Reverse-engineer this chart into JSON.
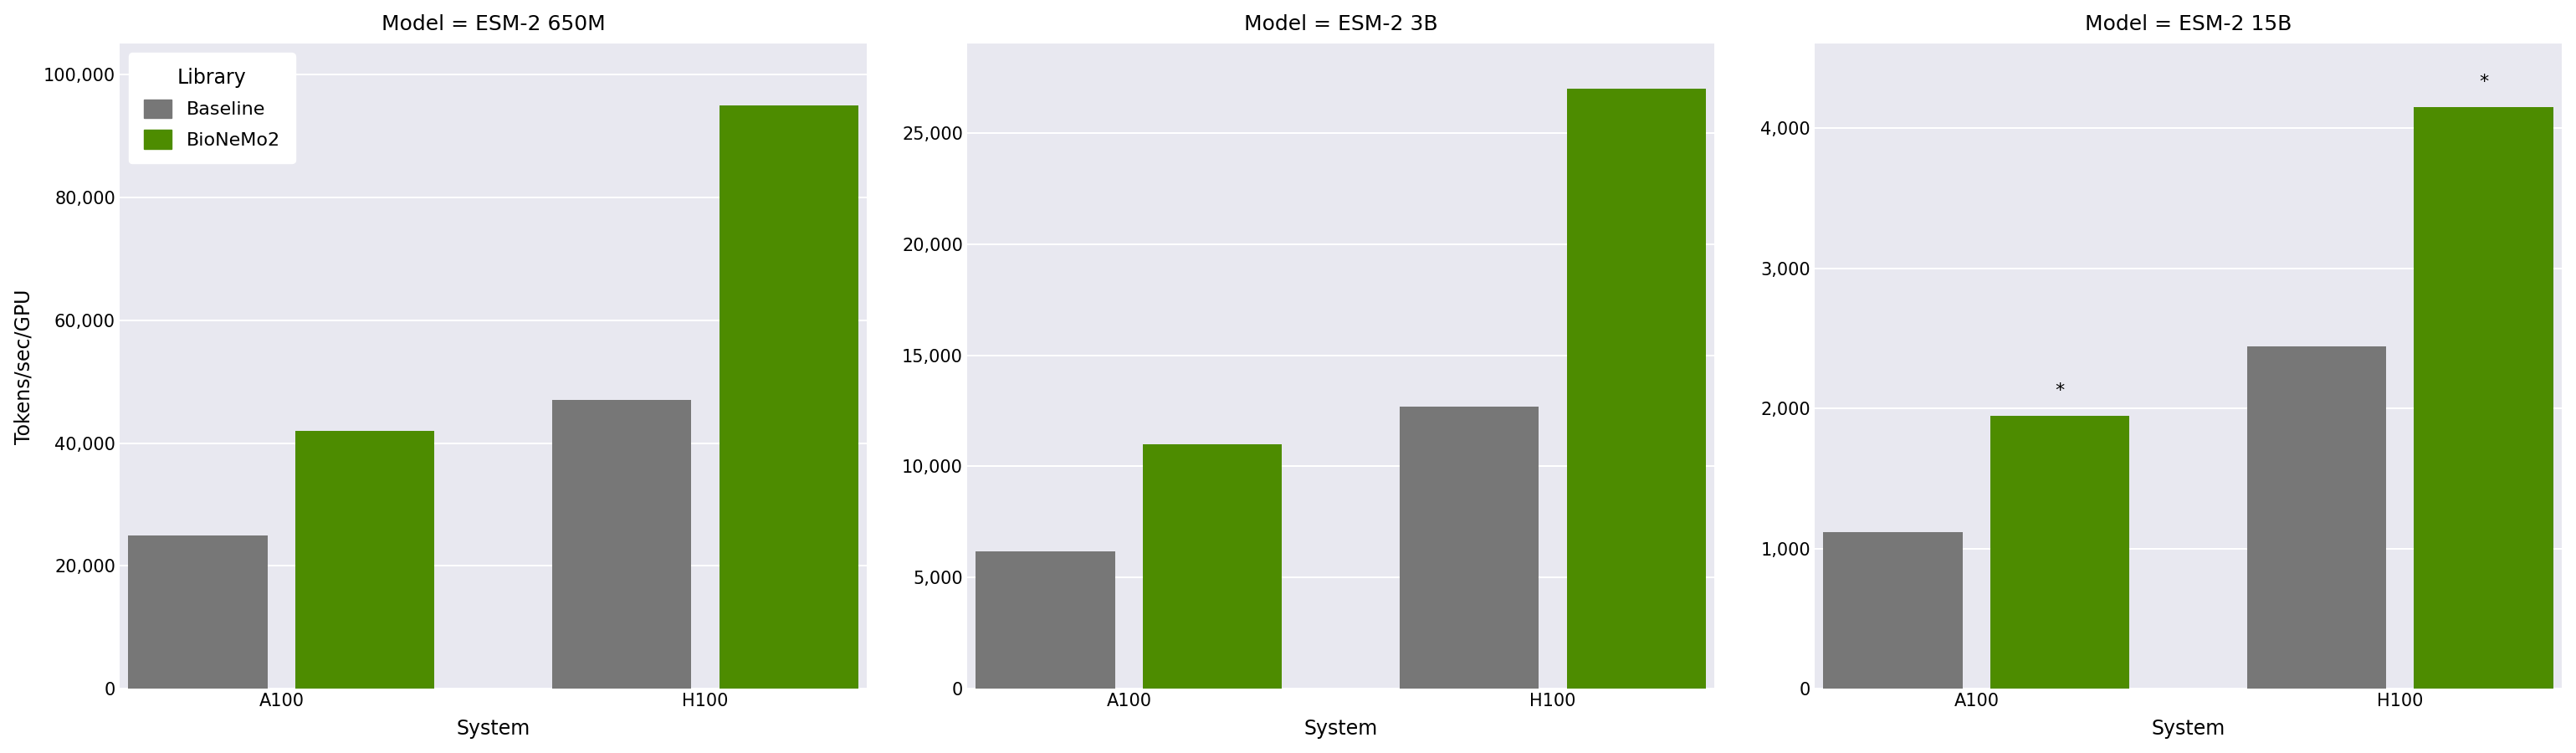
{
  "subplots": [
    {
      "title": "Model = ESM-2 650M",
      "systems": [
        "A100",
        "H100"
      ],
      "baseline": [
        25000,
        47000
      ],
      "bionemo2": [
        42000,
        95000
      ],
      "ylim": [
        0,
        105000
      ],
      "yticks": [
        0,
        20000,
        40000,
        60000,
        80000,
        100000
      ],
      "ytick_labels": [
        "0",
        "20,000",
        "40,000",
        "60,000",
        "80,000",
        "100,000"
      ],
      "annotations": [
        null,
        null,
        null,
        null
      ]
    },
    {
      "title": "Model = ESM-2 3B",
      "systems": [
        "A100",
        "H100"
      ],
      "baseline": [
        6200,
        12700
      ],
      "bionemo2": [
        11000,
        27000
      ],
      "ylim": [
        0,
        29000
      ],
      "yticks": [
        0,
        5000,
        10000,
        15000,
        20000,
        25000
      ],
      "ytick_labels": [
        "0",
        "5,000",
        "10,000",
        "15,000",
        "20,000",
        "25,000"
      ],
      "annotations": [
        null,
        null,
        null,
        null
      ]
    },
    {
      "title": "Model = ESM-2 15B",
      "systems": [
        "A100",
        "H100"
      ],
      "baseline": [
        1120,
        2440
      ],
      "bionemo2": [
        1950,
        4150
      ],
      "ylim": [
        0,
        4600
      ],
      "yticks": [
        0,
        1000,
        2000,
        3000,
        4000
      ],
      "ytick_labels": [
        "0",
        "1,000",
        "2,000",
        "3,000",
        "4,000"
      ],
      "annotations": [
        null,
        "*",
        null,
        "*"
      ]
    }
  ],
  "ylabel": "Tokens/sec/GPU",
  "xlabel": "System",
  "legend_title": "Library",
  "legend_labels": [
    "Baseline",
    "BioNeMo2"
  ],
  "bar_colors": [
    "#777777",
    "#4d8c00"
  ],
  "background_color": "#e8e8f0",
  "fig_background": "#ffffff",
  "title_fontsize": 18,
  "axis_label_fontsize": 17,
  "tick_fontsize": 15,
  "legend_fontsize": 16,
  "legend_title_fontsize": 17,
  "bar_width": 0.62,
  "annotation_fontsize": 16,
  "grid_color": "#ffffff",
  "grid_linewidth": 1.5
}
